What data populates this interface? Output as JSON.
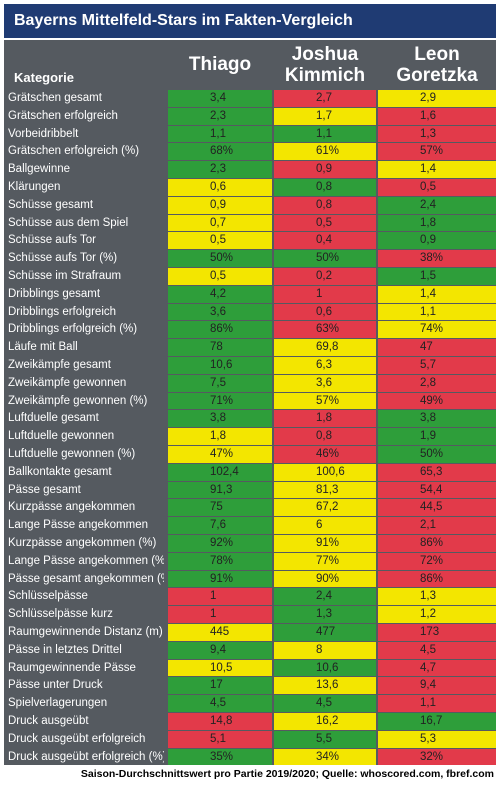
{
  "title": "Bayerns Mittelfeld-Stars im Fakten-Vergleich",
  "kategorie_label": "Kategorie",
  "players": [
    "Thiago",
    "Joshua Kimmich",
    "Leon Goretzka"
  ],
  "colors": {
    "green": "#2e9e3a",
    "yellow": "#f3e600",
    "red": "#e23a4a",
    "title_bg": "#1f3b73",
    "grid_bg": "#555a60"
  },
  "footer": "Saison-Durchschnittswert pro Partie 2019/2020; Quelle: whoscored.com, fbref.com",
  "chart_data": {
    "type": "table",
    "columns": [
      "Kategorie",
      "Thiago",
      "Joshua Kimmich",
      "Leon Goretzka"
    ],
    "rows": [
      {
        "label": "Grätschen gesamt",
        "values": [
          "3,4",
          "2,7",
          "2,9"
        ],
        "colors": [
          "green",
          "red",
          "yellow"
        ]
      },
      {
        "label": "Grätschen erfolgreich",
        "values": [
          "2,3",
          "1,7",
          "1,6"
        ],
        "colors": [
          "green",
          "yellow",
          "red"
        ]
      },
      {
        "label": "Vorbeidribbelt",
        "values": [
          "1,1",
          "1,1",
          "1,3"
        ],
        "colors": [
          "green",
          "green",
          "red"
        ]
      },
      {
        "label": "Grätschen erfolgreich (%)",
        "values": [
          "68%",
          "61%",
          "57%"
        ],
        "colors": [
          "green",
          "yellow",
          "red"
        ]
      },
      {
        "label": "Ballgewinne",
        "values": [
          "2,3",
          "0,9",
          "1,4"
        ],
        "colors": [
          "green",
          "red",
          "yellow"
        ]
      },
      {
        "label": "Klärungen",
        "values": [
          "0,6",
          "0,8",
          "0,5"
        ],
        "colors": [
          "yellow",
          "green",
          "red"
        ]
      },
      {
        "label": "Schüsse gesamt",
        "values": [
          "0,9",
          "0,8",
          "2,4"
        ],
        "colors": [
          "yellow",
          "red",
          "green"
        ]
      },
      {
        "label": "Schüsse aus dem Spiel",
        "values": [
          "0,7",
          "0,5",
          "1,8"
        ],
        "colors": [
          "yellow",
          "red",
          "green"
        ]
      },
      {
        "label": "Schüsse aufs Tor",
        "values": [
          "0,5",
          "0,4",
          "0,9"
        ],
        "colors": [
          "yellow",
          "red",
          "green"
        ]
      },
      {
        "label": "Schüsse aufs Tor (%)",
        "values": [
          "50%",
          "50%",
          "38%"
        ],
        "colors": [
          "green",
          "green",
          "red"
        ]
      },
      {
        "label": "Schüsse im Strafraum",
        "values": [
          "0,5",
          "0,2",
          "1,5"
        ],
        "colors": [
          "yellow",
          "red",
          "green"
        ]
      },
      {
        "label": "Dribblings gesamt",
        "values": [
          "4,2",
          "1",
          "1,4"
        ],
        "colors": [
          "green",
          "red",
          "yellow"
        ]
      },
      {
        "label": "Dribblings erfolgreich",
        "values": [
          "3,6",
          "0,6",
          "1,1"
        ],
        "colors": [
          "green",
          "red",
          "yellow"
        ]
      },
      {
        "label": "Dribblings erfolgreich (%)",
        "values": [
          "86%",
          "63%",
          "74%"
        ],
        "colors": [
          "green",
          "red",
          "yellow"
        ]
      },
      {
        "label": "Läufe mit Ball",
        "values": [
          "78",
          "69,8",
          "47"
        ],
        "colors": [
          "green",
          "yellow",
          "red"
        ]
      },
      {
        "label": "Zweikämpfe gesamt",
        "values": [
          "10,6",
          "6,3",
          "5,7"
        ],
        "colors": [
          "green",
          "yellow",
          "red"
        ]
      },
      {
        "label": "Zweikämpfe gewonnen",
        "values": [
          "7,5",
          "3,6",
          "2,8"
        ],
        "colors": [
          "green",
          "yellow",
          "red"
        ]
      },
      {
        "label": "Zweikämpfe gewonnen (%)",
        "values": [
          "71%",
          "57%",
          "49%"
        ],
        "colors": [
          "green",
          "yellow",
          "red"
        ]
      },
      {
        "label": "Luftduelle gesamt",
        "values": [
          "3,8",
          "1,8",
          "3,8"
        ],
        "colors": [
          "green",
          "red",
          "green"
        ]
      },
      {
        "label": "Luftduelle gewonnen",
        "values": [
          "1,8",
          "0,8",
          "1,9"
        ],
        "colors": [
          "yellow",
          "red",
          "green"
        ]
      },
      {
        "label": "Luftduelle gewonnen (%)",
        "values": [
          "47%",
          "46%",
          "50%"
        ],
        "colors": [
          "yellow",
          "red",
          "green"
        ]
      },
      {
        "label": "Ballkontakte gesamt",
        "values": [
          "102,4",
          "100,6",
          "65,3"
        ],
        "colors": [
          "green",
          "yellow",
          "red"
        ]
      },
      {
        "label": "Pässe gesamt",
        "values": [
          "91,3",
          "81,3",
          "54,4"
        ],
        "colors": [
          "green",
          "yellow",
          "red"
        ]
      },
      {
        "label": "Kurzpässe angekommen",
        "values": [
          "75",
          "67,2",
          "44,5"
        ],
        "colors": [
          "green",
          "yellow",
          "red"
        ]
      },
      {
        "label": "Lange Pässe angekommen",
        "values": [
          "7,6",
          "6",
          "2,1"
        ],
        "colors": [
          "green",
          "yellow",
          "red"
        ]
      },
      {
        "label": "Kurzpässe angekommen (%)",
        "values": [
          "92%",
          "91%",
          "86%"
        ],
        "colors": [
          "green",
          "yellow",
          "red"
        ]
      },
      {
        "label": "Lange Pässe angekommen (%)",
        "values": [
          "78%",
          "77%",
          "72%"
        ],
        "colors": [
          "green",
          "yellow",
          "red"
        ]
      },
      {
        "label": "Pässe gesamt angekommen (%)",
        "values": [
          "91%",
          "90%",
          "86%"
        ],
        "colors": [
          "green",
          "yellow",
          "red"
        ]
      },
      {
        "label": "Schlüsselpässe",
        "values": [
          "1",
          "2,4",
          "1,3"
        ],
        "colors": [
          "red",
          "green",
          "yellow"
        ]
      },
      {
        "label": "Schlüsselpässe kurz",
        "values": [
          "1",
          "1,3",
          "1,2"
        ],
        "colors": [
          "red",
          "green",
          "yellow"
        ]
      },
      {
        "label": "Raumgewinnende Distanz (m)",
        "values": [
          "445",
          "477",
          "173"
        ],
        "colors": [
          "yellow",
          "green",
          "red"
        ]
      },
      {
        "label": "Pässe in letztes Drittel",
        "values": [
          "9,4",
          "8",
          "4,5"
        ],
        "colors": [
          "green",
          "yellow",
          "red"
        ]
      },
      {
        "label": "Raumgewinnende Pässe",
        "values": [
          "10,5",
          "10,6",
          "4,7"
        ],
        "colors": [
          "yellow",
          "green",
          "red"
        ]
      },
      {
        "label": "Pässe unter Druck",
        "values": [
          "17",
          "13,6",
          "9,4"
        ],
        "colors": [
          "green",
          "yellow",
          "red"
        ]
      },
      {
        "label": "Spielverlagerungen",
        "values": [
          "4,5",
          "4,5",
          "1,1"
        ],
        "colors": [
          "green",
          "green",
          "red"
        ]
      },
      {
        "label": "Druck ausgeübt",
        "values": [
          "14,8",
          "16,2",
          "16,7"
        ],
        "colors": [
          "red",
          "yellow",
          "green"
        ]
      },
      {
        "label": "Druck ausgeübt erfolgreich",
        "values": [
          "5,1",
          "5,5",
          "5,3"
        ],
        "colors": [
          "red",
          "green",
          "yellow"
        ]
      },
      {
        "label": "Druck ausgeübt erfolgreich (%)",
        "values": [
          "35%",
          "34%",
          "32%"
        ],
        "colors": [
          "green",
          "yellow",
          "red"
        ]
      }
    ]
  }
}
